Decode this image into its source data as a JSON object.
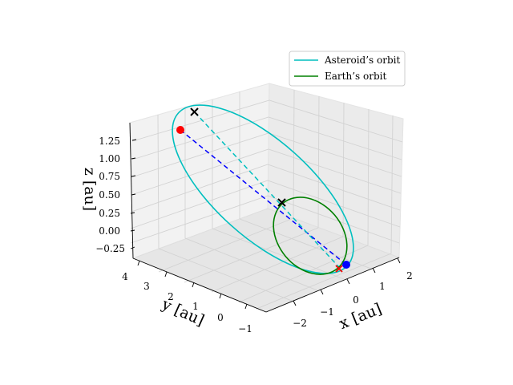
{
  "chart_data": {
    "type": "line3d",
    "title": "",
    "axes": {
      "x": {
        "label": "x [au]",
        "ticks": [
          "−2",
          "−1",
          "0",
          "1",
          "2"
        ]
      },
      "y": {
        "label": "y [au]",
        "ticks": [
          "−1",
          "0",
          "1",
          "2",
          "3",
          "4"
        ]
      },
      "z": {
        "label": "z [au]",
        "ticks": [
          "−0.25",
          "0.00",
          "0.25",
          "0.50",
          "0.75",
          "1.00",
          "1.25"
        ]
      }
    },
    "grid": true,
    "legend": {
      "position": "upper-right",
      "entries": [
        {
          "name": "Asteroid’s orbit",
          "color": "#00bfbf"
        },
        {
          "name": "Earth’s orbit",
          "color": "#008000"
        }
      ]
    },
    "series": [
      {
        "name": "Asteroid’s orbit",
        "kind": "ellipse",
        "color": "#00bfbf",
        "style": "solid"
      },
      {
        "name": "Earth’s orbit",
        "kind": "ellipse",
        "color": "#008000",
        "style": "solid"
      },
      {
        "kind": "segment",
        "color": "#0000ff",
        "style": "dashed"
      },
      {
        "kind": "segment",
        "color": "#00bfbf",
        "style": "dashed"
      }
    ],
    "markers": [
      {
        "symbol": "x",
        "color": "#000000"
      },
      {
        "symbol": "x",
        "color": "#000000"
      },
      {
        "symbol": "x",
        "color": "#ff0000"
      },
      {
        "symbol": "dot",
        "color": "#ff0000"
      },
      {
        "symbol": "dot",
        "color": "#0000ff"
      }
    ]
  }
}
